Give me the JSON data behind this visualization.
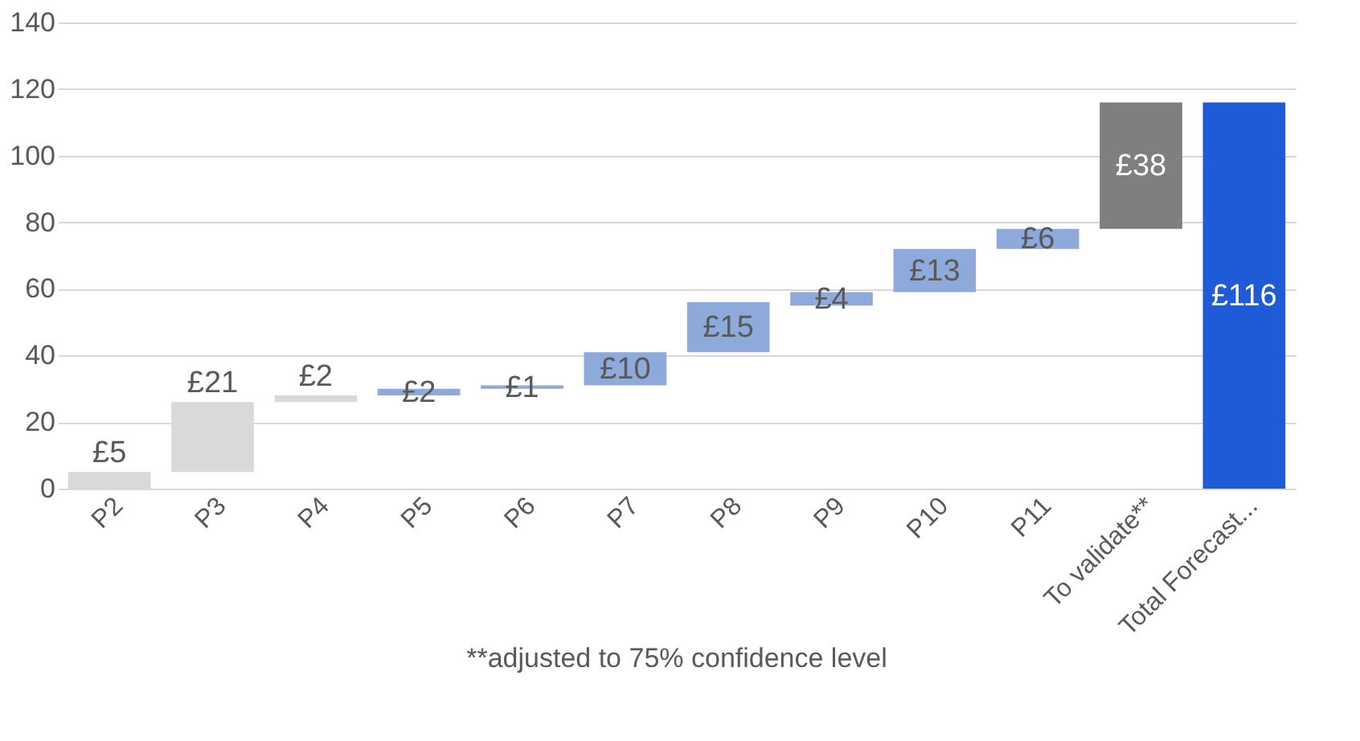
{
  "chart_data": {
    "type": "bar",
    "categories": [
      "P2",
      "P3",
      "P4",
      "P5",
      "P6",
      "P7",
      "P8",
      "P9",
      "P10",
      "P11",
      "To validate**",
      "Total Forecast..."
    ],
    "values": [
      5,
      21,
      2,
      2,
      1,
      10,
      15,
      4,
      13,
      6,
      38,
      116
    ],
    "base": [
      0,
      5,
      26,
      28,
      30,
      31,
      41,
      55,
      59,
      72,
      78,
      0
    ],
    "colors": [
      "#d9d9d9",
      "#d9d9d9",
      "#d9d9d9",
      "#8eaadb",
      "#8eaadb",
      "#8eaadb",
      "#8eaadb",
      "#8eaadb",
      "#8eaadb",
      "#8eaadb",
      "#7f7f7f",
      "#1f5bd6"
    ],
    "value_labels": [
      "£5",
      "£21",
      "£2",
      "£2",
      "£1",
      "£10",
      "£15",
      "£4",
      "£13",
      "£6",
      "£38",
      "£116"
    ],
    "ylim": [
      0,
      140
    ],
    "yticks": [
      0,
      20,
      40,
      60,
      80,
      100,
      120,
      140
    ],
    "grid": "y",
    "annotations": [
      "**adjusted to 75% confidence level"
    ]
  }
}
